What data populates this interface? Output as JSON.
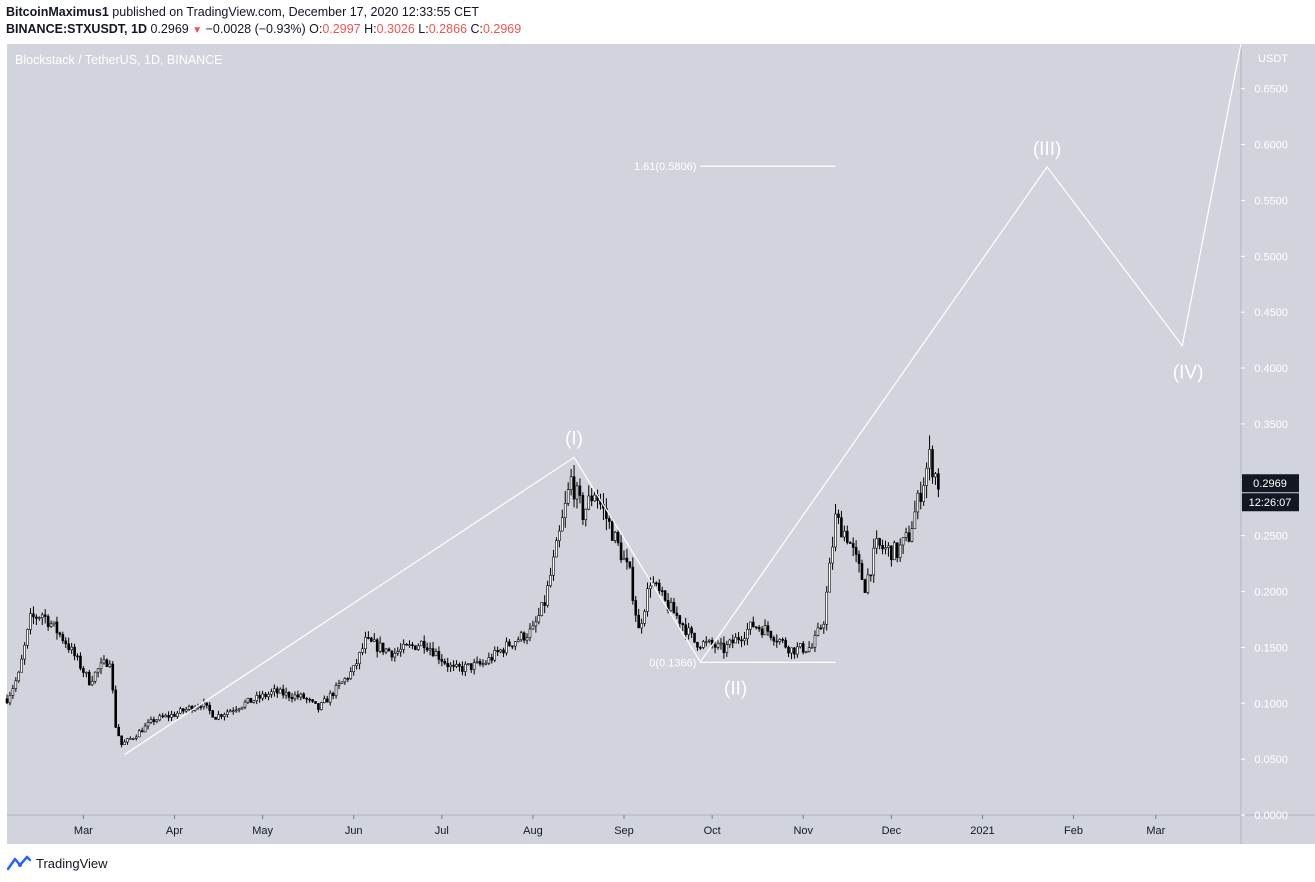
{
  "header": {
    "author": "BitcoinMaximus1",
    "published_text": "published on TradingView.com, December 17, 2020 12:33:55 CET",
    "symbol": "BINANCE:STXUSDT, 1D",
    "last": "0.2969",
    "change": "−0.0028 (−0.93%)",
    "o_label": "O:",
    "o_value": "0.2997",
    "h_label": "H:",
    "h_value": "0.3026",
    "l_label": "L:",
    "l_value": "0.2866",
    "c_label": "C:",
    "c_value": "0.2969"
  },
  "chart_title": "Blockstack / TetherUS, 1D, BINANCE",
  "footer": {
    "brand": "TradingView",
    "icon": "tradingview-logo-icon"
  },
  "colors": {
    "chart_bg": "#d1d4dc",
    "candle": "#000000",
    "annotation": "#ffffff",
    "price_tag_bg": "#131722",
    "price_tag_text": "#ffffff",
    "down_red": "#ef5350"
  },
  "chart_data": {
    "type": "candlestick",
    "title": "Blockstack / TetherUS, 1D, BINANCE",
    "ylabel": "USDT",
    "ylim": [
      0,
      0.69
    ],
    "y_ticks": [
      "0.0000",
      "0.0500",
      "0.1000",
      "0.1500",
      "0.2000",
      "0.2500",
      "0.3000",
      "0.3500",
      "0.4000",
      "0.4500",
      "0.5000",
      "0.5500",
      "0.6000",
      "0.6500"
    ],
    "x_ticks": [
      "Mar",
      "Apr",
      "May",
      "Jun",
      "Jul",
      "Aug",
      "Sep",
      "Oct",
      "Nov",
      "Dec",
      "2021",
      "Feb",
      "Mar"
    ],
    "x_tick_dates": [
      "2020-03-01",
      "2020-04-01",
      "2020-05-01",
      "2020-06-01",
      "2020-07-01",
      "2020-08-01",
      "2020-09-01",
      "2020-10-01",
      "2020-11-01",
      "2020-12-01",
      "2021-01-01",
      "2021-02-01",
      "2021-03-01"
    ],
    "x_range": [
      "2020-02-04",
      "2021-03-30"
    ],
    "close_path": [
      [
        "2020-02-04",
        0.104
      ],
      [
        "2020-02-08",
        0.125
      ],
      [
        "2020-02-12",
        0.175
      ],
      [
        "2020-02-16",
        0.18
      ],
      [
        "2020-02-20",
        0.168
      ],
      [
        "2020-02-24",
        0.155
      ],
      [
        "2020-02-28",
        0.138
      ],
      [
        "2020-03-03",
        0.12
      ],
      [
        "2020-03-06",
        0.13
      ],
      [
        "2020-03-10",
        0.14
      ],
      [
        "2020-03-12",
        0.08
      ],
      [
        "2020-03-14",
        0.063
      ],
      [
        "2020-03-18",
        0.07
      ],
      [
        "2020-03-25",
        0.085
      ],
      [
        "2020-04-01",
        0.09
      ],
      [
        "2020-04-10",
        0.1
      ],
      [
        "2020-04-15",
        0.088
      ],
      [
        "2020-04-25",
        0.1
      ],
      [
        "2020-05-05",
        0.11
      ],
      [
        "2020-05-15",
        0.105
      ],
      [
        "2020-05-20",
        0.095
      ],
      [
        "2020-06-01",
        0.13
      ],
      [
        "2020-06-05",
        0.155
      ],
      [
        "2020-06-15",
        0.145
      ],
      [
        "2020-06-25",
        0.155
      ],
      [
        "2020-07-05",
        0.13
      ],
      [
        "2020-07-15",
        0.135
      ],
      [
        "2020-07-25",
        0.155
      ],
      [
        "2020-08-01",
        0.165
      ],
      [
        "2020-08-05",
        0.19
      ],
      [
        "2020-08-10",
        0.25
      ],
      [
        "2020-08-14",
        0.3
      ],
      [
        "2020-08-18",
        0.27
      ],
      [
        "2020-08-22",
        0.29
      ],
      [
        "2020-08-27",
        0.26
      ],
      [
        "2020-09-03",
        0.215
      ],
      [
        "2020-09-06",
        0.165
      ],
      [
        "2020-09-10",
        0.21
      ],
      [
        "2020-09-15",
        0.19
      ],
      [
        "2020-09-20",
        0.175
      ],
      [
        "2020-09-25",
        0.155
      ],
      [
        "2020-10-01",
        0.152
      ],
      [
        "2020-10-05",
        0.148
      ],
      [
        "2020-10-15",
        0.17
      ],
      [
        "2020-10-20",
        0.165
      ],
      [
        "2020-10-28",
        0.148
      ],
      [
        "2020-11-04",
        0.15
      ],
      [
        "2020-11-08",
        0.175
      ],
      [
        "2020-11-12",
        0.265
      ],
      [
        "2020-11-16",
        0.25
      ],
      [
        "2020-11-22",
        0.205
      ],
      [
        "2020-11-26",
        0.24
      ],
      [
        "2020-12-03",
        0.235
      ],
      [
        "2020-12-07",
        0.25
      ],
      [
        "2020-12-11",
        0.29
      ],
      [
        "2020-12-14",
        0.32
      ],
      [
        "2020-12-17",
        0.2969
      ]
    ],
    "wave_projection": [
      [
        "2020-03-15",
        0.054
      ],
      [
        "2020-08-15",
        0.32
      ],
      [
        "2020-09-27",
        0.137
      ],
      [
        "2021-01-23",
        0.58
      ],
      [
        "2021-03-10",
        0.42
      ],
      [
        "2021-03-30",
        0.69
      ]
    ],
    "wave_labels": [
      {
        "text": "(I)",
        "date": "2020-08-15",
        "price": 0.338
      },
      {
        "text": "(II)",
        "date": "2020-10-09",
        "price": 0.114
      },
      {
        "text": "(III)",
        "date": "2021-01-23",
        "price": 0.597
      },
      {
        "text": "(IV)",
        "date": "2021-03-12",
        "price": 0.397
      }
    ],
    "fib_levels": [
      {
        "label": "1.61(0.5806)",
        "value": 0.5806,
        "from": "2020-09-27",
        "to": "2020-11-12"
      },
      {
        "label": "0(0.1366)",
        "value": 0.1366,
        "from": "2020-09-27",
        "to": "2020-11-12"
      }
    ],
    "last_price": {
      "value": 0.2969,
      "label": "0.2969",
      "countdown": "12:26:07"
    }
  }
}
